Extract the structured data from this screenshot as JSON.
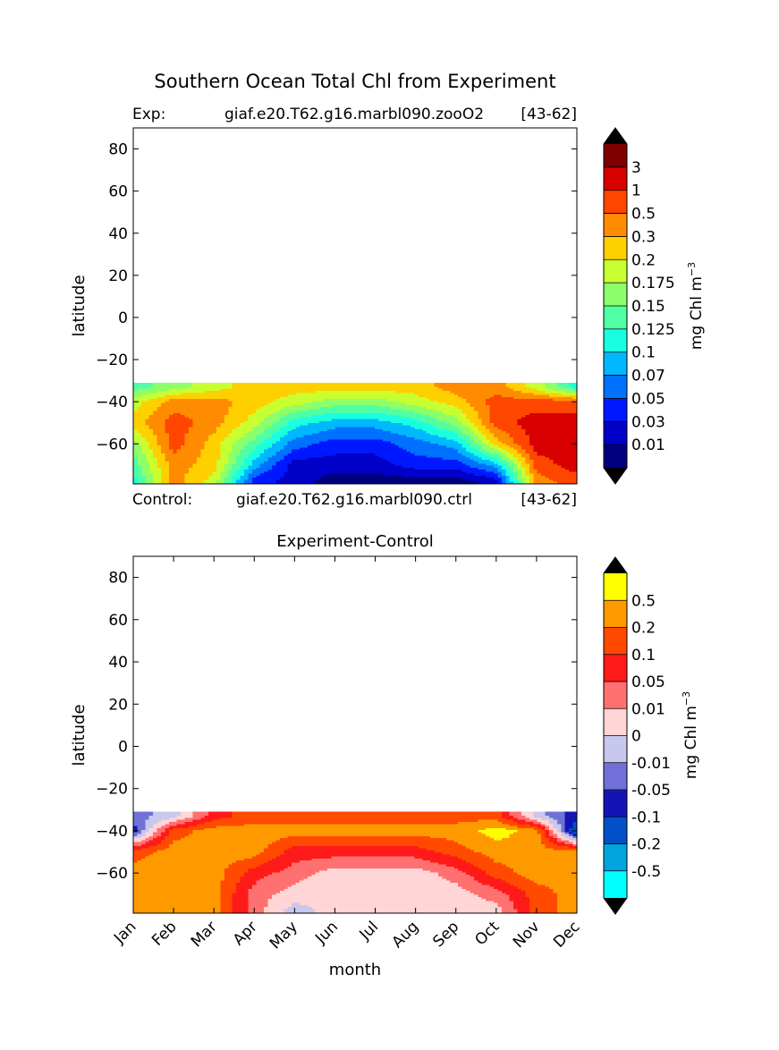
{
  "figure_title": "Southern Ocean Total Chl from Experiment",
  "chart_data": [
    {
      "type": "heatmap",
      "name": "experiment-panel",
      "header": {
        "left_label": "Exp:",
        "case": "giaf.e20.T62.g16.marbl090.zooO2",
        "years": "[43-62]"
      },
      "footer": {
        "left_label": "Control:",
        "case": "giaf.e20.T62.g16.marbl090.ctrl",
        "years": "[43-62]"
      },
      "title": "",
      "xlabel": "",
      "ylabel": "latitude",
      "xlim": [
        0,
        11
      ],
      "ylim": [
        -79,
        90
      ],
      "yticks": [
        80,
        60,
        40,
        20,
        0,
        -20,
        -40,
        -60
      ],
      "ytick_labels": [
        "80",
        "60",
        "40",
        "20",
        "0",
        "−20",
        "−40",
        "−60"
      ],
      "data_lat_max": -31,
      "colorbar": {
        "label": "mg Chl m",
        "label_sup": "−3",
        "extend": "both",
        "over_color": "#000000",
        "under_color": "#000000",
        "levels": [
          "0.01",
          "0.03",
          "0.05",
          "0.07",
          "0.1",
          "0.125",
          "0.15",
          "0.175",
          "0.2",
          "0.3",
          "0.5",
          "1",
          "3"
        ],
        "colors": [
          "#00007f",
          "#0000c8",
          "#0018ff",
          "#0070ff",
          "#00b8ff",
          "#1affe0",
          "#50ffa5",
          "#8cff6a",
          "#c8ff30",
          "#ffd000",
          "#ff8c00",
          "#ff4600",
          "#d80000",
          "#800000"
        ]
      },
      "profiles": {
        "months": [
          0,
          1,
          2,
          3,
          4,
          5,
          6,
          7,
          8,
          9,
          10,
          11
        ],
        "latitudes": [
          -33,
          -40,
          -50,
          -60,
          -70,
          -78
        ],
        "class_index": [
          [
            6,
            8,
            9,
            7,
            6,
            5
          ],
          [
            7,
            10,
            11,
            11,
            10,
            10
          ],
          [
            8,
            10,
            10,
            9,
            9,
            8
          ],
          [
            9,
            9,
            8,
            6,
            4,
            2
          ],
          [
            9,
            8,
            5,
            3,
            1,
            1
          ],
          [
            9,
            7,
            4,
            2,
            1,
            0
          ],
          [
            9,
            7,
            4,
            2,
            1,
            0
          ],
          [
            9,
            8,
            5,
            3,
            2,
            0
          ],
          [
            10,
            9,
            7,
            4,
            2,
            0
          ],
          [
            10,
            11,
            11,
            9,
            4,
            1
          ],
          [
            8,
            11,
            12,
            12,
            11,
            10
          ],
          [
            5,
            11,
            12,
            12,
            12,
            11
          ]
        ]
      }
    },
    {
      "type": "heatmap",
      "name": "difference-panel",
      "title": "Experiment-Control",
      "xlabel": "month",
      "ylabel": "latitude",
      "xlim": [
        0,
        11
      ],
      "ylim": [
        -79,
        90
      ],
      "categories": [
        "Jan",
        "Feb",
        "Mar",
        "Apr",
        "May",
        "Jun",
        "Jul",
        "Aug",
        "Sep",
        "Oct",
        "Nov",
        "Dec"
      ],
      "yticks": [
        80,
        60,
        40,
        20,
        0,
        -20,
        -40,
        -60
      ],
      "ytick_labels": [
        "80",
        "60",
        "40",
        "20",
        "0",
        "−20",
        "−40",
        "−60"
      ],
      "data_lat_max": -31,
      "colorbar": {
        "label": "mg Chl m",
        "label_sup": "−3",
        "extend": "both",
        "over_color": "#000000",
        "under_color": "#000000",
        "levels": [
          "-0.5",
          "-0.2",
          "-0.1",
          "-0.05",
          "-0.01",
          "0",
          "0.01",
          "0.05",
          "0.1",
          "0.2",
          "0.5"
        ],
        "colors": [
          "#00ffff",
          "#00a5e0",
          "#0050c8",
          "#1414b4",
          "#7070d8",
          "#c8c8ee",
          "#ffd5d5",
          "#ff7070",
          "#ff1a1a",
          "#ff4a00",
          "#ff9900",
          "#ffff00"
        ]
      },
      "profiles": {
        "months": [
          0,
          1,
          2,
          3,
          4,
          5,
          6,
          7,
          8,
          9,
          10,
          11
        ],
        "latitudes": [
          -33,
          -40,
          -50,
          -60,
          -70,
          -78
        ],
        "class_index": [
          [
            4,
            3,
            9,
            10,
            10,
            10
          ],
          [
            5,
            9,
            10,
            10,
            10,
            10
          ],
          [
            8,
            10,
            10,
            10,
            10,
            10
          ],
          [
            9,
            10,
            10,
            8,
            7,
            7
          ],
          [
            9,
            10,
            8,
            7,
            6,
            5
          ],
          [
            9,
            10,
            8,
            6,
            6,
            6
          ],
          [
            9,
            10,
            8,
            6,
            6,
            6
          ],
          [
            9,
            10,
            8,
            6,
            6,
            6
          ],
          [
            9,
            10,
            9,
            7,
            6,
            6
          ],
          [
            9,
            11,
            10,
            9,
            7,
            6
          ],
          [
            5,
            10,
            10,
            10,
            9,
            9
          ],
          [
            3,
            1,
            10,
            10,
            10,
            10
          ]
        ]
      }
    }
  ]
}
